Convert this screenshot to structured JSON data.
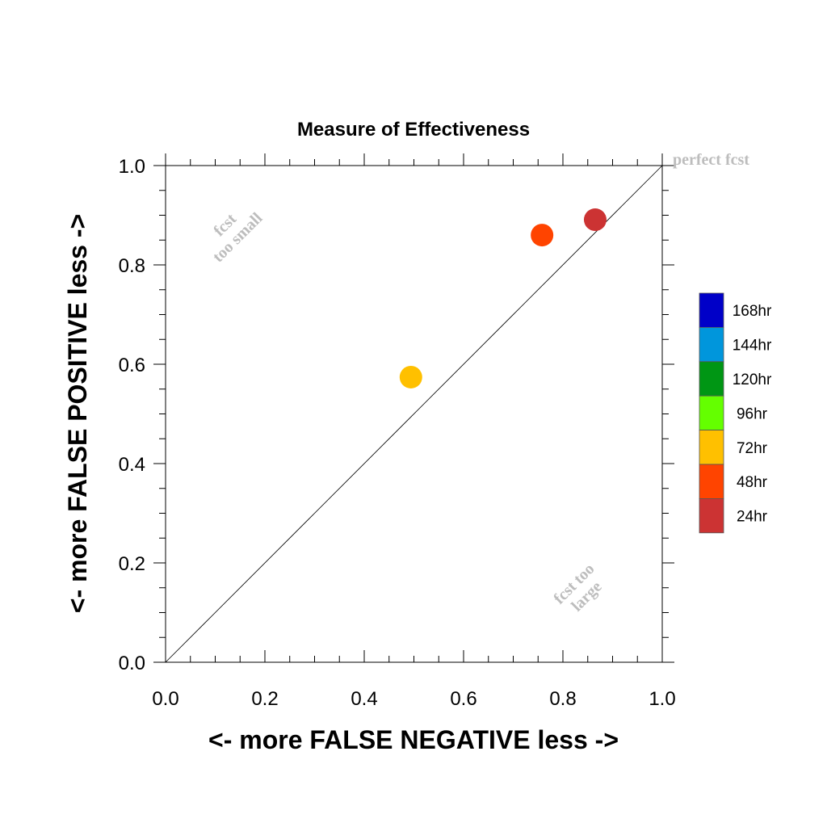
{
  "chart_data": {
    "type": "scatter",
    "title": "Measure of Effectiveness",
    "xlabel": "<- more   FALSE NEGATIVE   less ->",
    "ylabel": "<- more   FALSE POSITIVE   less ->",
    "xlim": [
      0,
      1
    ],
    "ylim": [
      0,
      1
    ],
    "xticks": [
      "0.0",
      "0.2",
      "0.4",
      "0.6",
      "0.8",
      "1.0"
    ],
    "yticks": [
      "0.0",
      "0.2",
      "0.4",
      "0.6",
      "0.8",
      "1.0"
    ],
    "grid": false,
    "legend_position": "right",
    "reference_line": "diagonal y = x",
    "annotations": {
      "perfect": "perfect fcst",
      "too_small": [
        "fcst",
        "too small"
      ],
      "too_large": [
        "fcst too",
        "large"
      ]
    },
    "series": [
      {
        "name": "24hr",
        "x": 0.865,
        "y": 0.891,
        "color": "#cc3333"
      },
      {
        "name": "48hr",
        "x": 0.758,
        "y": 0.86,
        "color": "#ff4400"
      },
      {
        "name": "72hr",
        "x": 0.494,
        "y": 0.574,
        "color": "#ffc000"
      }
    ],
    "legend": [
      {
        "label": "168hr",
        "color": "#0000c8"
      },
      {
        "label": "144hr",
        "color": "#0096dc"
      },
      {
        "label": "120hr",
        "color": "#009614"
      },
      {
        "label": "96hr",
        "color": "#64ff00"
      },
      {
        "label": "72hr",
        "color": "#ffc000"
      },
      {
        "label": "48hr",
        "color": "#ff4400"
      },
      {
        "label": "24hr",
        "color": "#cc3333"
      }
    ]
  }
}
